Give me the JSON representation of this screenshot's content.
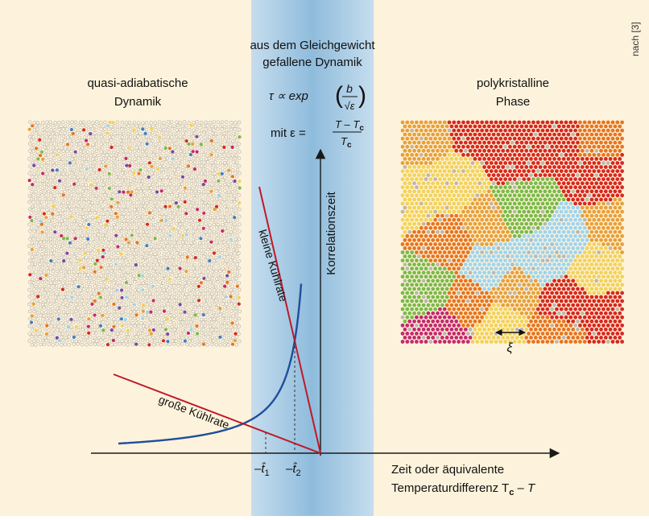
{
  "colors": {
    "panel_bg": "#fdf3dc",
    "band": "#9cc4e0",
    "curve": "#1f4e9c",
    "line_red": "#c0182a",
    "axis": "#1a1a1a",
    "grain_palette": [
      "#d8281f",
      "#e8a03a",
      "#f2d25a",
      "#9fd4ee",
      "#7cb94a",
      "#e7751f",
      "#c42a6e",
      "#7a47a8",
      "#3f7fc8"
    ],
    "grain_gray": "#bdb7ae"
  },
  "credit": "nach [3]",
  "left_title": [
    "quasi-adiabatische",
    "Dynamik"
  ],
  "right_title": [
    "polykristalline",
    "Phase"
  ],
  "center_title": [
    "aus dem Gleichgewicht",
    "gefallene Dynamik"
  ],
  "formula_tau": {
    "lhs": "τ ∝ exp",
    "num": "b",
    "den": "√ε"
  },
  "formula_eps": {
    "lhs": "mit ε =",
    "num": "T – T",
    "num_sub": "c",
    "den": "T",
    "den_sub": "c"
  },
  "y_axis_label": "Korrelationszeit",
  "small_rate_label": "kleine Kühlrate",
  "large_rate_label": "große Kühlrate",
  "t1_label": {
    "prefix": "–t̂",
    "sub": "1"
  },
  "t2_label": {
    "prefix": "–t̂",
    "sub": "2"
  },
  "x_axis_label": [
    "Zeit oder äquivalente",
    "Temperaturdifferenz T"
  ],
  "x_axis_label_tail": {
    "sub": "c",
    "rest": " – T"
  },
  "xi_label": "ξ"
}
